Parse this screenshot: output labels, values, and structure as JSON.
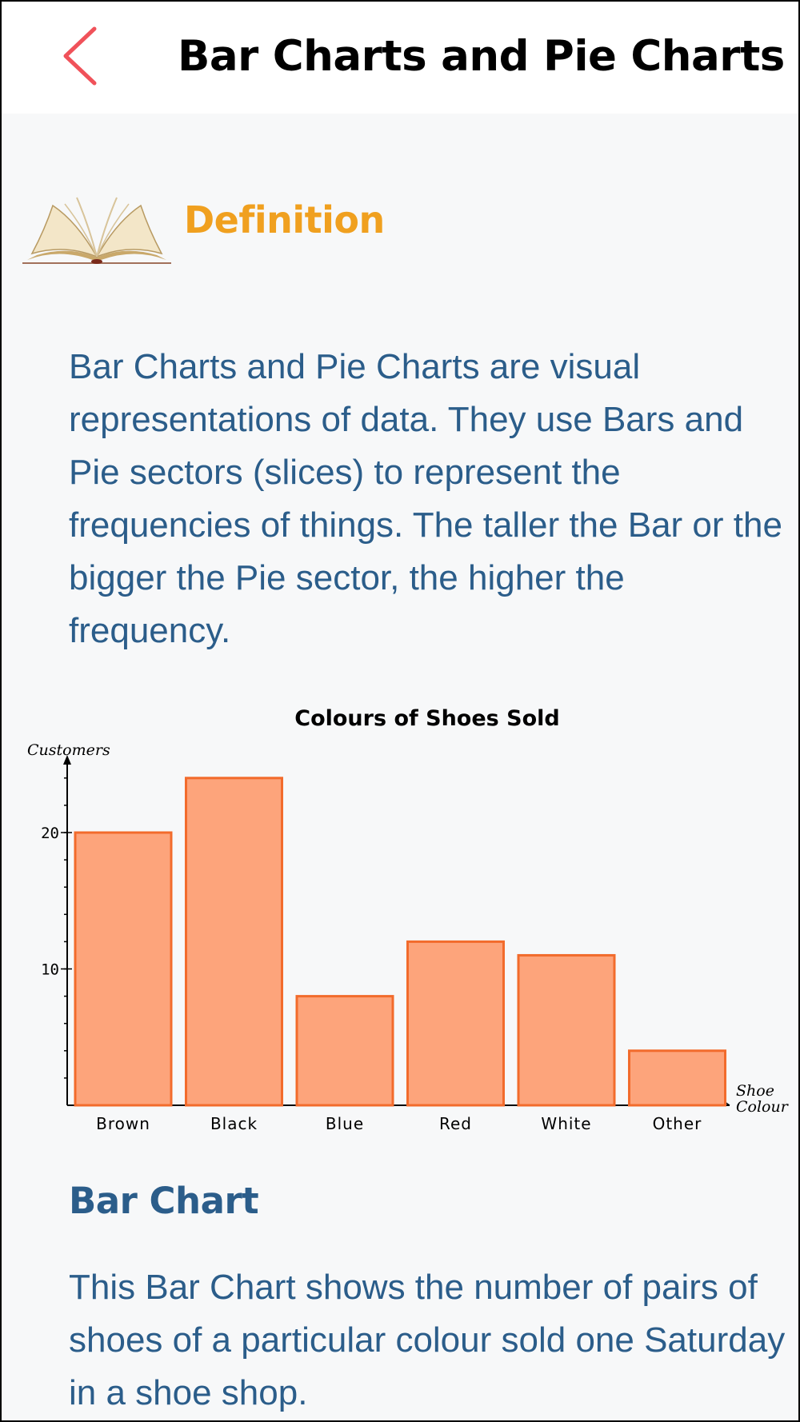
{
  "header": {
    "title": "Bar Charts and Pie Charts",
    "accent_color": "#f0525a",
    "back_icon": "chevron-left-icon"
  },
  "definition": {
    "icon": "open-book-icon",
    "heading": "Definition",
    "heading_color": "#f0a01f",
    "text": "Bar Charts and Pie Charts are visual representations of data. They use Bars and Pie sectors (slices) to represent the frequencies of things. The taller the Bar or the bigger the Pie sector, the higher the frequency."
  },
  "chart_data": {
    "type": "bar",
    "title": "Colours of Shoes Sold",
    "xlabel": "Shoe Colour",
    "ylabel": "Customers",
    "categories": [
      "Brown",
      "Black",
      "Blue",
      "Red",
      "White",
      "Other"
    ],
    "values": [
      20,
      24,
      8,
      12,
      11,
      4
    ],
    "ylim": [
      0,
      25
    ],
    "yticks": [
      10,
      20
    ],
    "bar_fill": "#fda47b",
    "bar_stroke": "#f26b2c",
    "grid": false
  },
  "bar_chart_section": {
    "heading": "Bar Chart",
    "text": "This Bar Chart shows the number of pairs of shoes of a particular colour sold one Saturday in a shoe shop."
  }
}
